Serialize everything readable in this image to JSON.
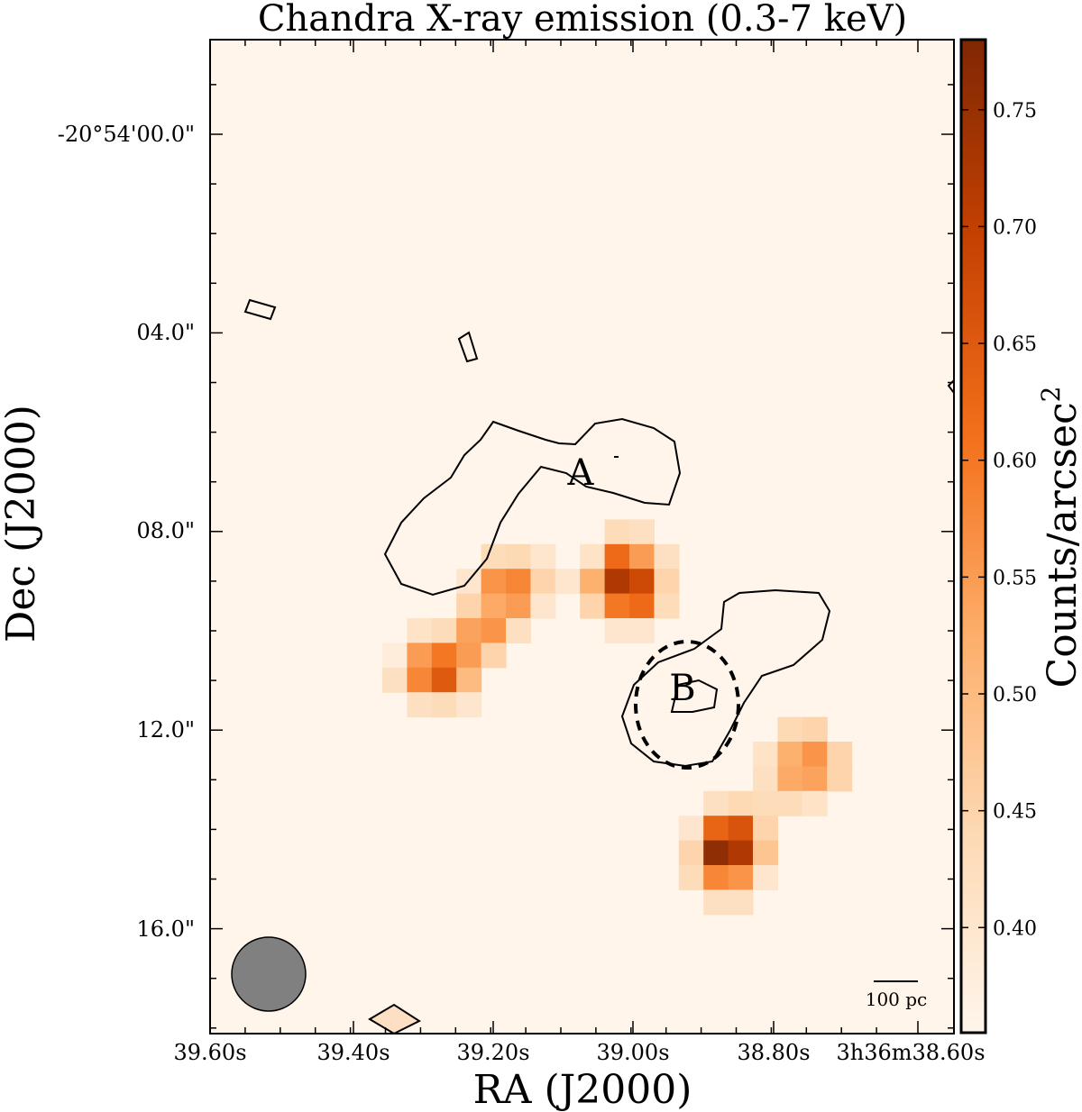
{
  "chart_data": {
    "type": "heatmap",
    "title": "Chandra X-ray emission (0.3-7 keV)",
    "xlabel": "RA (J2000)",
    "ylabel": "Dec (J2000)",
    "x_tick_labels": [
      "39.60s",
      "39.40s",
      "39.20s",
      "39.00s",
      "38.80s",
      "3h36m38.60s"
    ],
    "y_tick_labels": [
      "-20°54'00.0\"",
      "04.0\"",
      "08.0\"",
      "12.0\""
    ],
    "y_tick_labels_extra": [
      "16.0\""
    ],
    "colorbar": {
      "label": "Counts/arcsec",
      "label_superscript": "2",
      "min": 0.355,
      "max": 0.78,
      "ticks": [
        0.4,
        0.45,
        0.5,
        0.55,
        0.6,
        0.65,
        0.7,
        0.75
      ],
      "tick_labels": [
        "0.40",
        "0.45",
        "0.50",
        "0.55",
        "0.60",
        "0.65",
        "0.70",
        "0.75"
      ],
      "colormap": [
        "#fff5eb",
        "#fdd9b4",
        "#fdae6a",
        "#f3701b",
        "#c54102",
        "#7f2704"
      ]
    },
    "sources": [
      {
        "label": "A"
      },
      {
        "label": "B"
      }
    ],
    "pixel_grid": {
      "origin_col": 0,
      "origin_row": 0,
      "background_value": 0.36,
      "cells": [
        {
          "c": 0,
          "r": 11,
          "v": 0.38
        },
        {
          "c": 0,
          "r": 12,
          "v": 0.42
        },
        {
          "c": 1,
          "r": 10,
          "v": 0.41
        },
        {
          "c": 1,
          "r": 11,
          "v": 0.55
        },
        {
          "c": 1,
          "r": 12,
          "v": 0.58
        },
        {
          "c": 1,
          "r": 13,
          "v": 0.42
        },
        {
          "c": 2,
          "r": 10,
          "v": 0.43
        },
        {
          "c": 2,
          "r": 11,
          "v": 0.6
        },
        {
          "c": 2,
          "r": 12,
          "v": 0.65
        },
        {
          "c": 2,
          "r": 13,
          "v": 0.43
        },
        {
          "c": 3,
          "r": 8,
          "v": 0.4
        },
        {
          "c": 3,
          "r": 9,
          "v": 0.45
        },
        {
          "c": 3,
          "r": 10,
          "v": 0.54
        },
        {
          "c": 3,
          "r": 11,
          "v": 0.55
        },
        {
          "c": 3,
          "r": 12,
          "v": 0.5
        },
        {
          "c": 3,
          "r": 13,
          "v": 0.4
        },
        {
          "c": 4,
          "r": 7,
          "v": 0.43
        },
        {
          "c": 4,
          "r": 8,
          "v": 0.56
        },
        {
          "c": 4,
          "r": 9,
          "v": 0.53
        },
        {
          "c": 4,
          "r": 10,
          "v": 0.56
        },
        {
          "c": 4,
          "r": 11,
          "v": 0.45
        },
        {
          "c": 5,
          "r": 7,
          "v": 0.44
        },
        {
          "c": 5,
          "r": 8,
          "v": 0.58
        },
        {
          "c": 5,
          "r": 9,
          "v": 0.55
        },
        {
          "c": 5,
          "r": 10,
          "v": 0.42
        },
        {
          "c": 6,
          "r": 7,
          "v": 0.4
        },
        {
          "c": 6,
          "r": 8,
          "v": 0.45
        },
        {
          "c": 6,
          "r": 9,
          "v": 0.4
        },
        {
          "c": 7,
          "r": 8,
          "v": 0.4
        },
        {
          "c": 8,
          "r": 7,
          "v": 0.41
        },
        {
          "c": 8,
          "r": 8,
          "v": 0.52
        },
        {
          "c": 8,
          "r": 9,
          "v": 0.45
        },
        {
          "c": 9,
          "r": 6,
          "v": 0.43
        },
        {
          "c": 9,
          "r": 7,
          "v": 0.62
        },
        {
          "c": 9,
          "r": 8,
          "v": 0.72
        },
        {
          "c": 9,
          "r": 9,
          "v": 0.6
        },
        {
          "c": 9,
          "r": 10,
          "v": 0.4
        },
        {
          "c": 10,
          "r": 6,
          "v": 0.42
        },
        {
          "c": 10,
          "r": 7,
          "v": 0.55
        },
        {
          "c": 10,
          "r": 8,
          "v": 0.68
        },
        {
          "c": 10,
          "r": 9,
          "v": 0.62
        },
        {
          "c": 10,
          "r": 10,
          "v": 0.4
        },
        {
          "c": 11,
          "r": 7,
          "v": 0.42
        },
        {
          "c": 11,
          "r": 8,
          "v": 0.45
        },
        {
          "c": 11,
          "r": 9,
          "v": 0.43
        },
        {
          "c": 12,
          "r": 18,
          "v": 0.4
        },
        {
          "c": 12,
          "r": 19,
          "v": 0.45
        },
        {
          "c": 12,
          "r": 20,
          "v": 0.43
        },
        {
          "c": 13,
          "r": 17,
          "v": 0.42
        },
        {
          "c": 13,
          "r": 18,
          "v": 0.63
        },
        {
          "c": 13,
          "r": 19,
          "v": 0.76
        },
        {
          "c": 13,
          "r": 20,
          "v": 0.58
        },
        {
          "c": 13,
          "r": 21,
          "v": 0.42
        },
        {
          "c": 14,
          "r": 17,
          "v": 0.44
        },
        {
          "c": 14,
          "r": 18,
          "v": 0.66
        },
        {
          "c": 14,
          "r": 19,
          "v": 0.72
        },
        {
          "c": 14,
          "r": 20,
          "v": 0.56
        },
        {
          "c": 14,
          "r": 21,
          "v": 0.42
        },
        {
          "c": 15,
          "r": 15,
          "v": 0.41
        },
        {
          "c": 15,
          "r": 16,
          "v": 0.42
        },
        {
          "c": 15,
          "r": 17,
          "v": 0.43
        },
        {
          "c": 15,
          "r": 18,
          "v": 0.45
        },
        {
          "c": 15,
          "r": 19,
          "v": 0.48
        },
        {
          "c": 15,
          "r": 20,
          "v": 0.4
        },
        {
          "c": 16,
          "r": 14,
          "v": 0.44
        },
        {
          "c": 16,
          "r": 15,
          "v": 0.52
        },
        {
          "c": 16,
          "r": 16,
          "v": 0.53
        },
        {
          "c": 16,
          "r": 17,
          "v": 0.43
        },
        {
          "c": 17,
          "r": 14,
          "v": 0.45
        },
        {
          "c": 17,
          "r": 15,
          "v": 0.56
        },
        {
          "c": 17,
          "r": 16,
          "v": 0.54
        },
        {
          "c": 17,
          "r": 17,
          "v": 0.41
        },
        {
          "c": 18,
          "r": 15,
          "v": 0.45
        },
        {
          "c": 18,
          "r": 16,
          "v": 0.45
        }
      ]
    },
    "scale_bar_label": "100 pc",
    "notes": [
      "Contours outline emission regions A and B",
      "Dashed circle marks source B",
      "Grey circle indicates the PSF/beam"
    ]
  }
}
